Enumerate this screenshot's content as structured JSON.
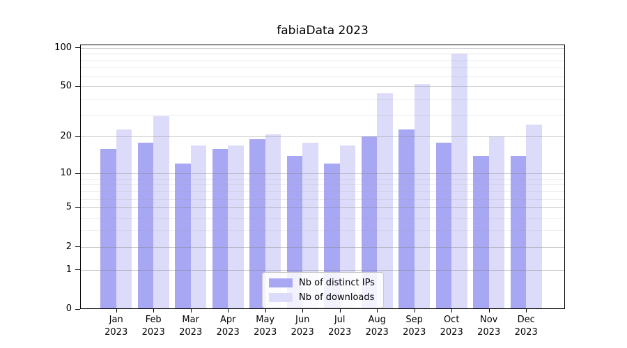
{
  "chart_data": {
    "type": "bar",
    "title": "fabiaData 2023",
    "scale": "log10(1+y)",
    "months": [
      "Jan",
      "Feb",
      "Mar",
      "Apr",
      "May",
      "Jun",
      "Jul",
      "Aug",
      "Sep",
      "Oct",
      "Nov",
      "Dec"
    ],
    "year_label": "2023",
    "series": [
      {
        "name": "Nb of distinct IPs",
        "color": "#a7a7f4",
        "values": [
          16,
          18,
          12,
          16,
          19,
          14,
          12,
          20,
          23,
          18,
          14,
          14
        ]
      },
      {
        "name": "Nb of downloads",
        "color": "#dcdcfa",
        "values": [
          23,
          29,
          17,
          17,
          21,
          18,
          17,
          44,
          52,
          90,
          20,
          25
        ]
      }
    ],
    "yticks": [
      0,
      1,
      2,
      5,
      10,
      20,
      50,
      100
    ],
    "minor_gridlines": [
      3,
      4,
      6,
      7,
      8,
      9,
      30,
      40,
      60,
      70,
      80,
      90
    ],
    "ylim": [
      0,
      106
    ],
    "grid": true,
    "legend_position": "lower-center",
    "colors": {
      "axis": "#000000",
      "grid_minor": "#eaeaea",
      "grid_major": "#d6d6d6",
      "background": "#ffffff"
    }
  }
}
